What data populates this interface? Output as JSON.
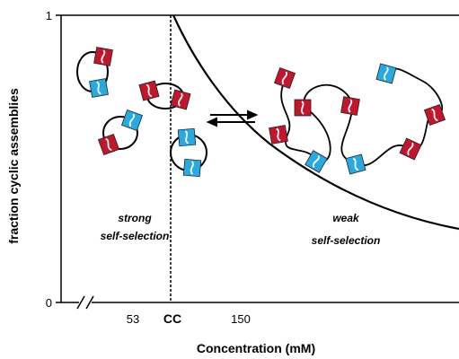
{
  "axes": {
    "y_label": "fraction cyclic assemblies",
    "x_label": "Concentration (mM)",
    "y_ticks": [
      "0",
      "1"
    ],
    "x_ticks": [
      "53",
      "CC",
      "150"
    ]
  },
  "regions": [
    {
      "lines": [
        "strong",
        "self-selection"
      ]
    },
    {
      "lines": [
        "weak",
        "self-selection"
      ]
    }
  ]
}
